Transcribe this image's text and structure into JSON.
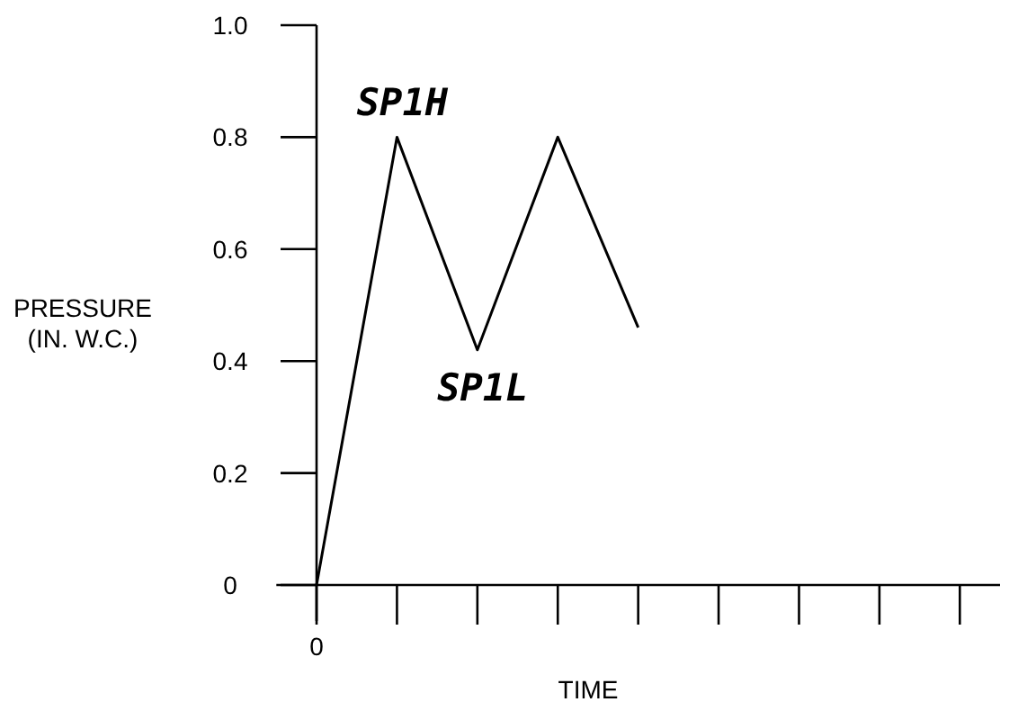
{
  "chart_data": {
    "type": "line",
    "xlabel": "TIME",
    "ylabel": "PRESSURE\n(IN. W.C.)",
    "categories": [
      "0",
      null,
      null,
      null,
      null,
      null,
      null,
      null,
      null
    ],
    "series": [
      {
        "color": "#000000",
        "values": [
          0,
          0.8,
          0.42,
          0.8,
          0.46,
          null,
          null,
          null,
          null
        ]
      }
    ],
    "ylim": [
      0,
      1.0
    ],
    "yticks": [
      0,
      0.2,
      0.4,
      0.6,
      0.8,
      {
        "value": 1.0,
        "label": "1.0"
      }
    ],
    "grid": false,
    "marker": "none",
    "line_style": "solid",
    "annotations": [
      "SP1H",
      "SP1L"
    ]
  }
}
